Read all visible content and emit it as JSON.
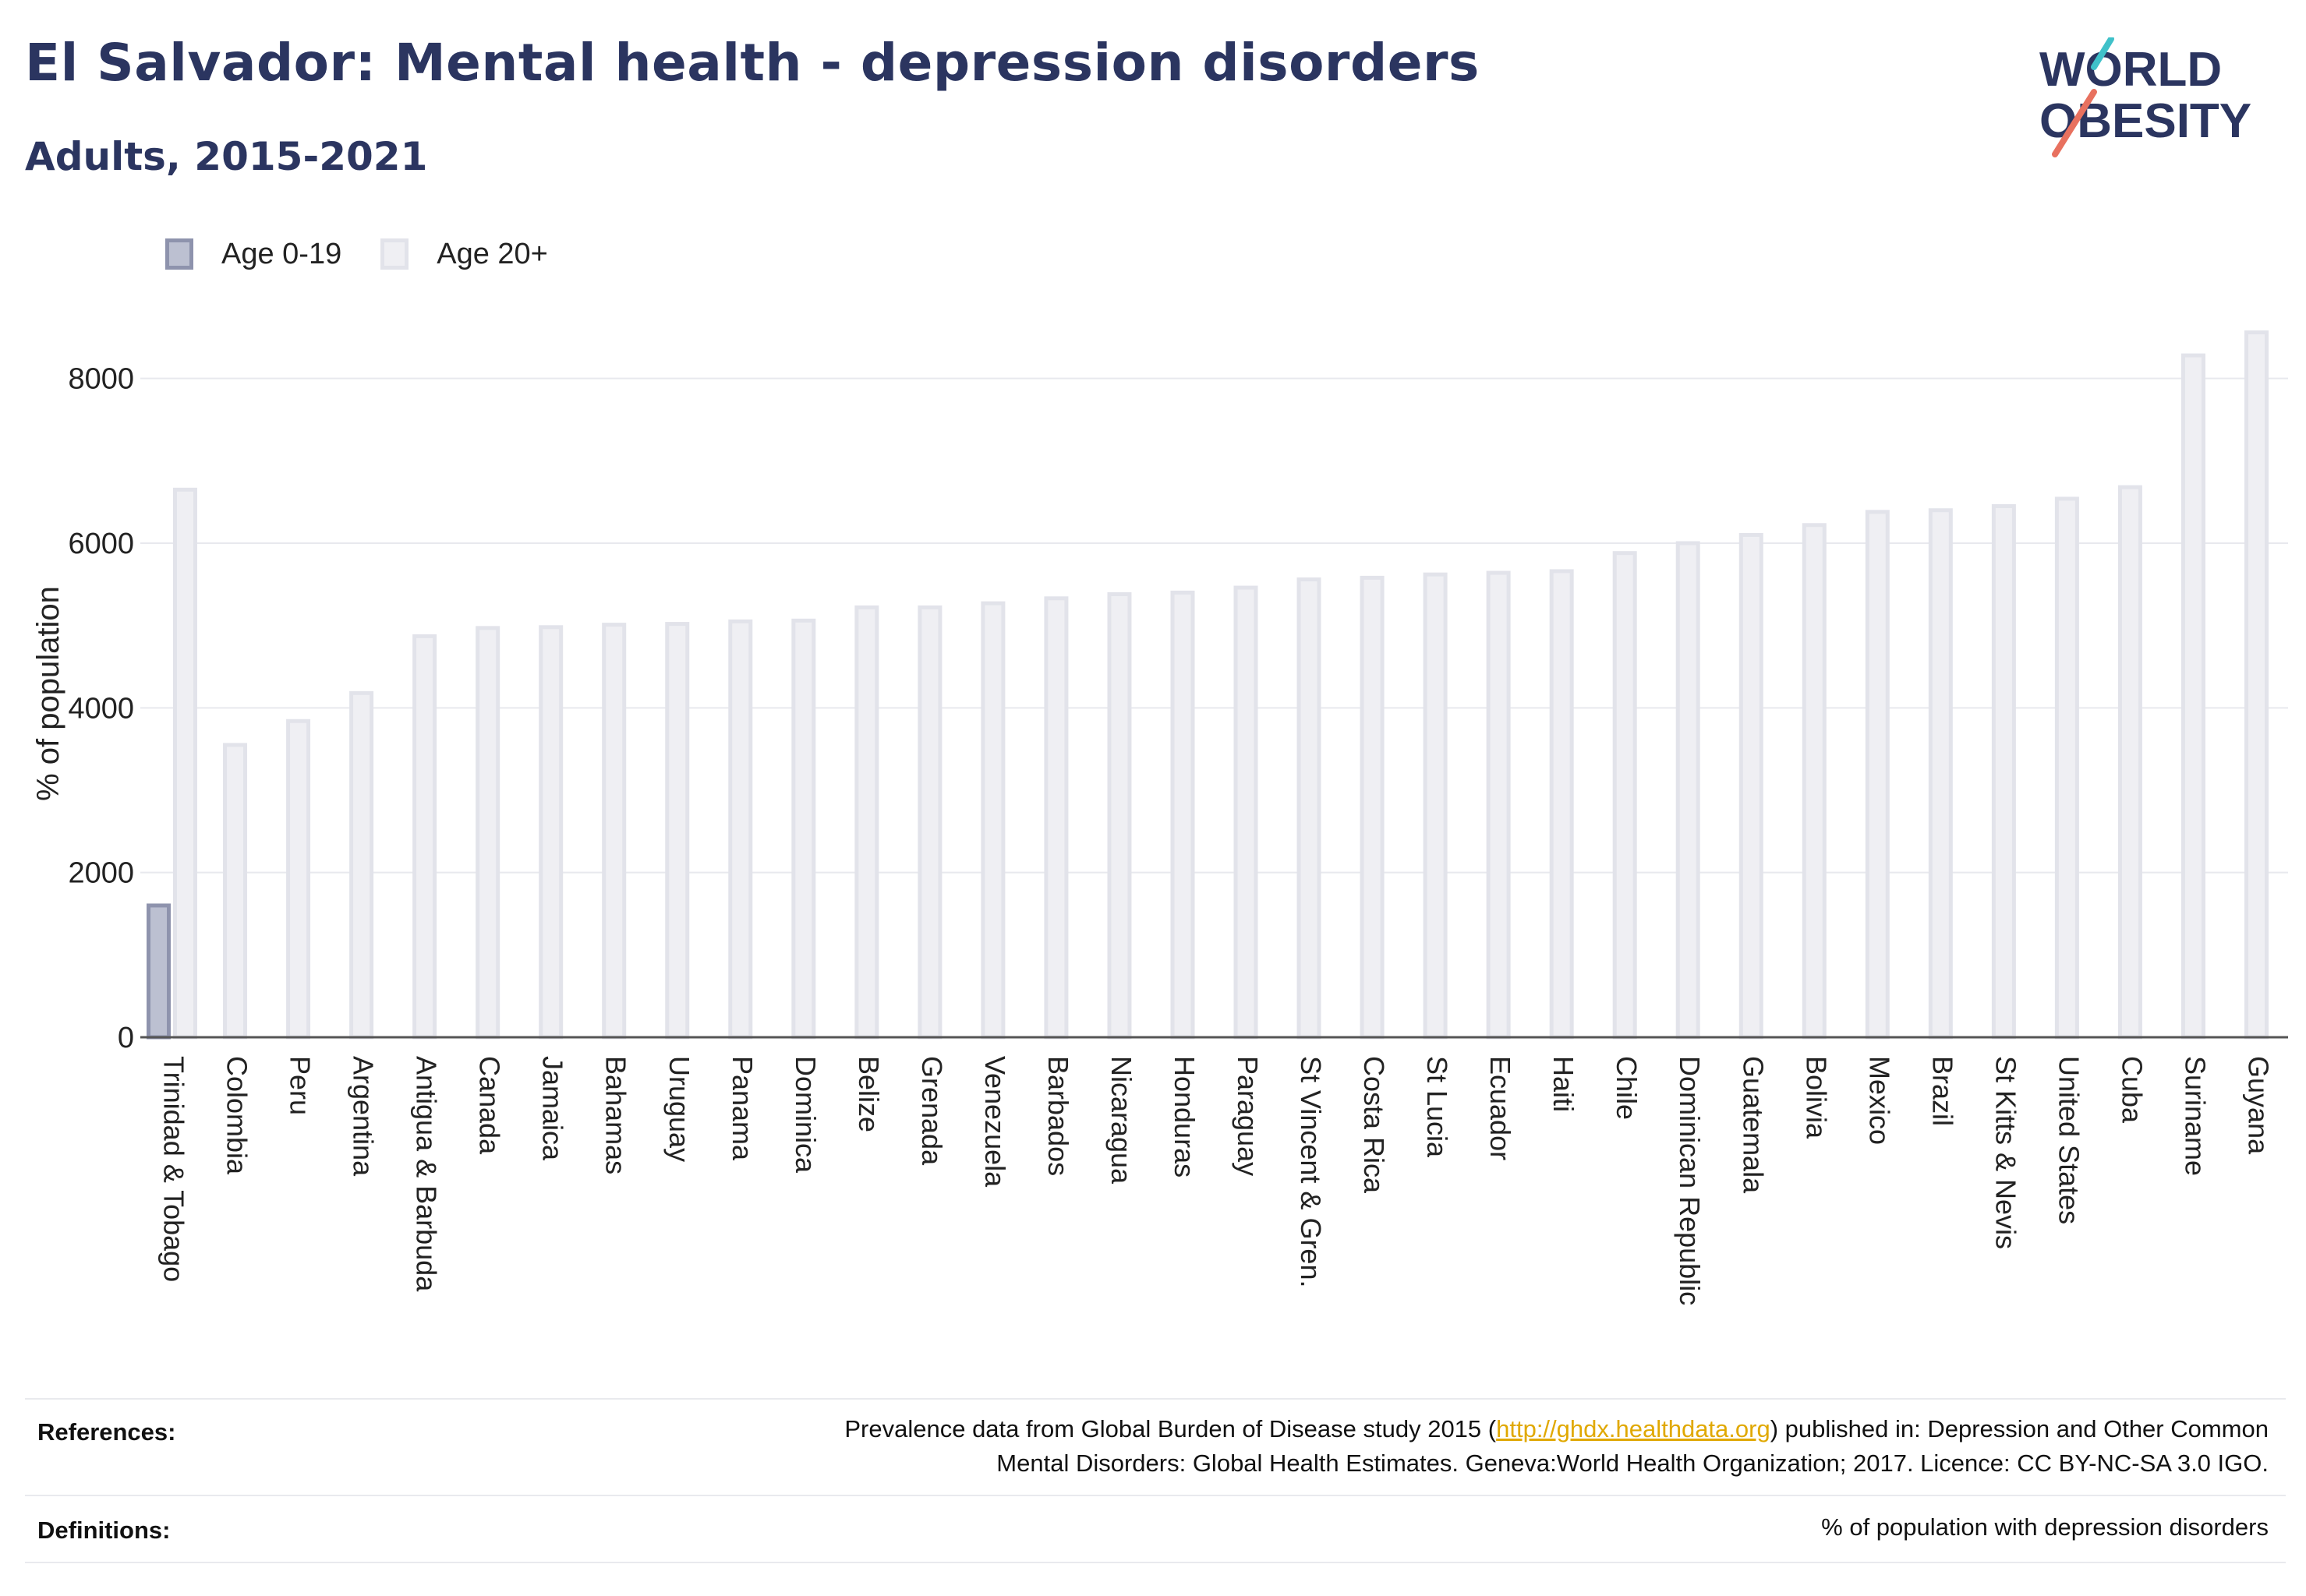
{
  "header": {
    "title": "El Salvador: Mental health - depression disorders",
    "subtitle": "Adults, 2015-2021"
  },
  "logo": {
    "line1": "WORLD",
    "line2": "OBESITY"
  },
  "legend": {
    "items": [
      {
        "label": "Age 0-19",
        "color": "#bcc0d1"
      },
      {
        "label": "Age 20+",
        "color": "#efeff3"
      }
    ]
  },
  "colors": {
    "series_a_fill": "#bcc0d1",
    "series_a_stroke": "#8e93ad",
    "series_b_fill": "#efeff3",
    "series_b_stroke": "#e2e3ea",
    "link": "#e0a800",
    "text": "#2b3560"
  },
  "chart_data": {
    "type": "bar",
    "title": "",
    "xlabel": "",
    "ylabel": "% of population",
    "ylim": [
      0,
      9000
    ],
    "yticks": [
      0,
      2000,
      4000,
      6000,
      8000
    ],
    "grid": true,
    "legend_position": "top-left",
    "categories": [
      "Trinidad & Tobago",
      "Colombia",
      "Peru",
      "Argentina",
      "Antigua & Barbuda",
      "Canada",
      "Jamaica",
      "Bahamas",
      "Uruguay",
      "Panama",
      "Dominica",
      "Belize",
      "Grenada",
      "Venezuela",
      "Barbados",
      "Nicaragua",
      "Honduras",
      "Paraguay",
      "St Vincent & Gren.",
      "Costa Rica",
      "St Lucia",
      "Ecuador",
      "Haiti",
      "Chile",
      "Dominican Republic",
      "Guatemala",
      "Bolivia",
      "Mexico",
      "Brazil",
      "St Kitts & Nevis",
      "United States",
      "Cuba",
      "Suriname",
      "Guyana"
    ],
    "series": [
      {
        "name": "Age 0-19",
        "values": [
          1600,
          null,
          null,
          null,
          null,
          null,
          null,
          null,
          null,
          null,
          null,
          null,
          null,
          null,
          null,
          null,
          null,
          null,
          null,
          null,
          null,
          null,
          null,
          null,
          null,
          null,
          null,
          null,
          null,
          null,
          null,
          null,
          null,
          null
        ]
      },
      {
        "name": "Age 20+",
        "values": [
          6650,
          3550,
          3840,
          4180,
          4870,
          4970,
          4980,
          5010,
          5020,
          5050,
          5060,
          5220,
          5220,
          5270,
          5330,
          5380,
          5400,
          5460,
          5560,
          5580,
          5620,
          5640,
          5660,
          5880,
          6000,
          6100,
          6220,
          6380,
          6400,
          6450,
          6540,
          6680,
          8280,
          8560
        ]
      }
    ]
  },
  "footer": {
    "references_label": "References:",
    "references_pre": "Prevalence data from Global Burden of Disease study 2015 (",
    "references_link": "http://ghdx.healthdata.org",
    "references_post": ") published in: Depression and Other Common",
    "references_line2": "Mental Disorders: Global Health Estimates. Geneva:World Health Organization; 2017. Licence: CC BY-NC-SA 3.0 IGO.",
    "definitions_label": "Definitions:",
    "definitions_text": "% of population with depression disorders"
  }
}
